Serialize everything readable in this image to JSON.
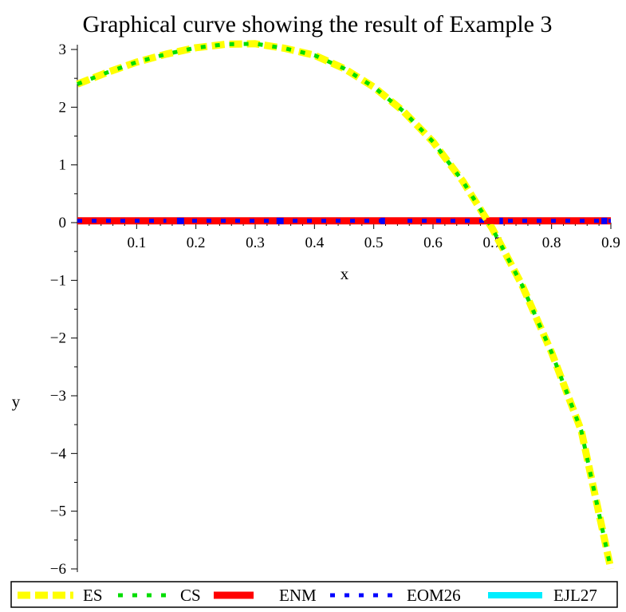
{
  "chart_data": {
    "type": "line",
    "title": "Graphical curve showing the result of  Example 3",
    "xlabel": "x",
    "ylabel": "y",
    "xlim": [
      0,
      0.9
    ],
    "ylim": [
      -6,
      3
    ],
    "x_ticks": [
      0.1,
      0.2,
      0.3,
      0.4,
      0.5,
      0.6,
      0.7,
      0.8,
      0.9
    ],
    "y_ticks": [
      3,
      2,
      1,
      0,
      -1,
      -2,
      -3,
      -4,
      -5,
      -6
    ],
    "grid": false,
    "legend_position": "bottom",
    "series": [
      {
        "name": "ES",
        "color": "#ffff00",
        "style": "dash",
        "x": [
          0,
          0.05,
          0.1,
          0.15,
          0.2,
          0.25,
          0.3,
          0.35,
          0.4,
          0.45,
          0.5,
          0.55,
          0.6,
          0.65,
          0.7,
          0.75,
          0.8,
          0.85,
          0.9
        ],
        "y": [
          2.4,
          2.6,
          2.78,
          2.92,
          3.03,
          3.09,
          3.1,
          3.02,
          2.9,
          2.67,
          2.35,
          1.93,
          1.4,
          0.72,
          -0.1,
          -1.08,
          -2.25,
          -3.6,
          -6.0
        ]
      },
      {
        "name": "CS",
        "color": "#00dd00",
        "style": "dot",
        "x": [
          0,
          0.05,
          0.1,
          0.15,
          0.2,
          0.25,
          0.3,
          0.35,
          0.4,
          0.45,
          0.5,
          0.55,
          0.6,
          0.65,
          0.7,
          0.75,
          0.8,
          0.85,
          0.9
        ],
        "y": [
          2.4,
          2.6,
          2.78,
          2.92,
          3.03,
          3.09,
          3.1,
          3.02,
          2.9,
          2.67,
          2.35,
          1.93,
          1.4,
          0.72,
          -0.1,
          -1.08,
          -2.25,
          -3.6,
          -6.0
        ]
      },
      {
        "name": "ENM",
        "color": "#ff0000",
        "style": "solid",
        "x": [
          0,
          0.9
        ],
        "y": [
          0.03,
          0.03
        ]
      },
      {
        "name": "EOM26",
        "color": "#0000ff",
        "style": "dot",
        "x": [
          0,
          0.9
        ],
        "y": [
          0.03,
          0.03
        ]
      },
      {
        "name": "EJL27",
        "color": "#00eeff",
        "style": "longdash",
        "x": [
          0,
          0.9
        ],
        "y": [
          0.03,
          0.03
        ]
      }
    ]
  }
}
